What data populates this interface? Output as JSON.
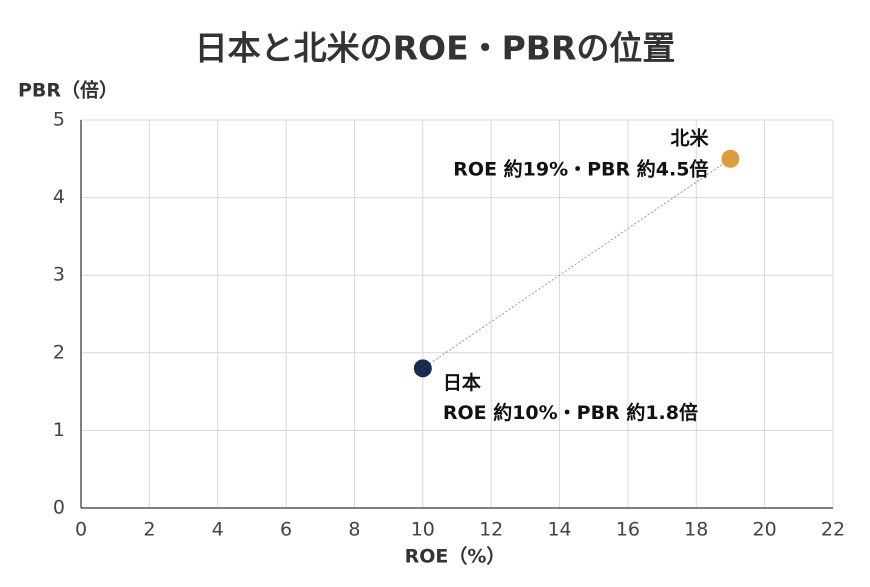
{
  "chart_data": {
    "type": "scatter",
    "title": "日本と北米のROE・PBRの位置",
    "x_label": "ROE（%）",
    "y_label": "PBR（倍）",
    "xlim": [
      0,
      22
    ],
    "xticks": [
      0,
      2,
      4,
      6,
      8,
      10,
      12,
      14,
      16,
      18,
      20,
      22
    ],
    "ylim": [
      0,
      5
    ],
    "yticks": [
      0,
      1,
      2,
      3,
      4,
      5
    ],
    "grid": true,
    "connector_line": true,
    "series": [
      {
        "name": "日本",
        "color": "#1b2b4f",
        "x": [
          10
        ],
        "values": [
          1.8
        ],
        "annotation": "ROE 約10%・PBR 約1.8倍"
      },
      {
        "name": "北米",
        "color": "#dc9d3c",
        "x": [
          19
        ],
        "values": [
          4.5
        ],
        "annotation": "ROE 約19%・PBR 約4.5倍"
      }
    ]
  }
}
